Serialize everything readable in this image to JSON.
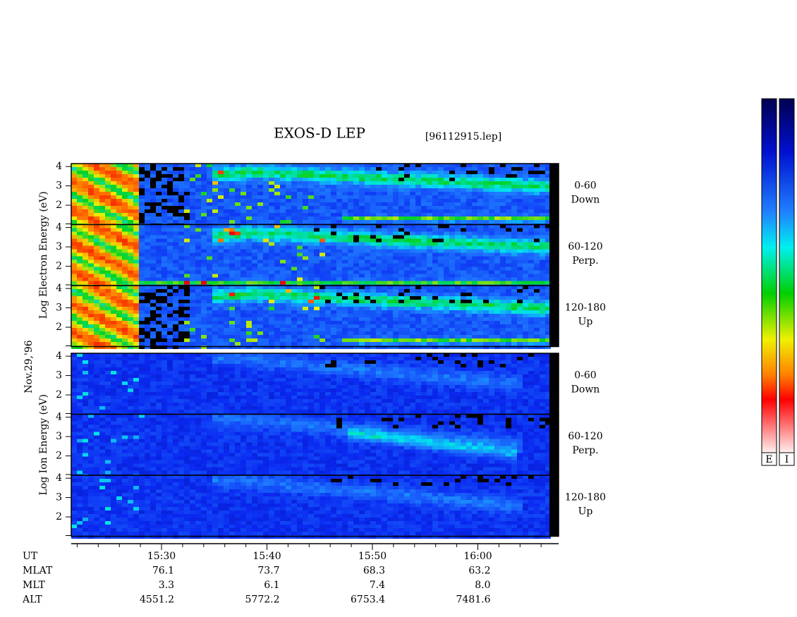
{
  "chart_data": {
    "type": "spectrogram",
    "title": "EXOS-D LEP",
    "subtitle": "[96112915.lep]",
    "date_label": "Nov.29,'96",
    "groups": [
      {
        "ylabel": "Log Electron Energy (eV)",
        "species": "electron",
        "panels": [
          {
            "pitch": "0-60",
            "direction": "Down"
          },
          {
            "pitch": "60-120",
            "direction": "Perp."
          },
          {
            "pitch": "120-180",
            "direction": "Up"
          }
        ]
      },
      {
        "ylabel": "Log Ion Energy (eV)",
        "species": "ion",
        "panels": [
          {
            "pitch": "0-60",
            "direction": "Down"
          },
          {
            "pitch": "60-120",
            "direction": "Perp."
          },
          {
            "pitch": "120-180",
            "direction": "Up"
          }
        ]
      }
    ],
    "ylim": [
      1,
      4.15
    ],
    "yticks": [
      2,
      3,
      4
    ],
    "xticks": [
      "15:30",
      "15:40",
      "15:50",
      "16:00"
    ],
    "orbit": [
      {
        "name": "UT"
      },
      {
        "name": "MLAT",
        "values": [
          "76.1",
          "73.7",
          "68.3",
          "63.2"
        ]
      },
      {
        "name": "MLT",
        "values": [
          "3.3",
          "6.1",
          "7.4",
          "8.0"
        ]
      },
      {
        "name": "ALT",
        "values": [
          "4551.2",
          "5772.2",
          "6753.4",
          "7481.6"
        ]
      }
    ],
    "colorbar_labels": [
      "E",
      "I"
    ]
  }
}
